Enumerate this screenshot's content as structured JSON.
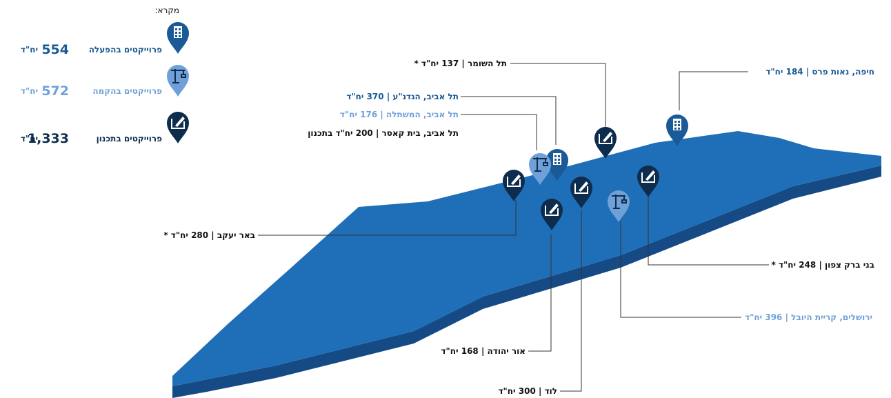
{
  "legend": {
    "title": "מקרא:",
    "items": [
      {
        "label": "פרוייקטים בהפעלה",
        "count": "554",
        "unit": "יח\"ד"
      },
      {
        "label": "פרוייקטים בהקמה",
        "count": "572",
        "unit": "יח\"ד"
      },
      {
        "label": "פרוייקטים בתכנון",
        "count": "1,333",
        "unit": "יח\"ד"
      }
    ]
  },
  "locations": [
    "תל השומר | 137 יח\"ד *",
    "חיפה, נאות פרס | 184 יח\"ד",
    "תל אביב, הגדנ\"ע | 370 יח\"ד",
    "תל אביב, המשתלה | 176 יח\"ד",
    "תל אביב, בית קאסר | 200 יח\"ד  בתכנון",
    "באר יעקב | 280 יח\"ד *",
    "בני ברק צפון | 248 יח\"ד *",
    "ירושלים, קריית היובל | 396 יח\"ד",
    "אור יהודה | 168 יח\"ד",
    "לוד | 300 יח\"ד"
  ]
}
